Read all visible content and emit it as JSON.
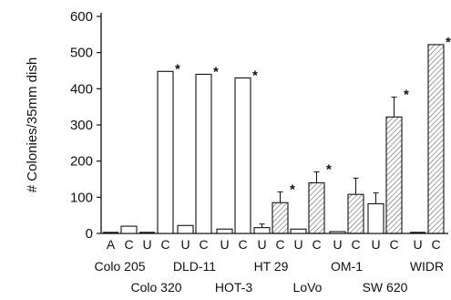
{
  "chart_data": {
    "type": "bar",
    "ylabel": "# Colonies/35mm dish",
    "ylim": [
      0,
      600
    ],
    "yticks": [
      0,
      100,
      200,
      300,
      400,
      500,
      600
    ],
    "grid": false,
    "legend": "none",
    "groups": [
      {
        "name": "Colo 205",
        "bars": [
          {
            "label": "A",
            "value": 0,
            "error": 0,
            "star": false,
            "hatched": false,
            "tiny_label": ""
          },
          {
            "label": "C",
            "value": 20,
            "error": 0,
            "star": false,
            "hatched": false
          }
        ]
      },
      {
        "name": "Colo 320",
        "bars": [
          {
            "label": "U",
            "value": 0,
            "error": 0,
            "star": false,
            "hatched": false
          },
          {
            "label": "C",
            "value": 448,
            "error": 0,
            "star": true,
            "hatched": false
          }
        ]
      },
      {
        "name": "DLD-11",
        "bars": [
          {
            "label": "U",
            "value": 22,
            "error": 0,
            "star": false,
            "hatched": false
          },
          {
            "label": "C",
            "value": 440,
            "error": 0,
            "star": true,
            "hatched": false
          }
        ]
      },
      {
        "name": "HOT-3",
        "bars": [
          {
            "label": "U",
            "value": 12,
            "error": 0,
            "star": false,
            "hatched": false
          },
          {
            "label": "C",
            "value": 430,
            "error": 0,
            "star": true,
            "hatched": false
          }
        ]
      },
      {
        "name": "HT 29",
        "bars": [
          {
            "label": "U",
            "value": 16,
            "error": 10,
            "star": false,
            "hatched": false
          },
          {
            "label": "C",
            "value": 85,
            "error": 30,
            "star": true,
            "hatched": true
          }
        ]
      },
      {
        "name": "LoVo",
        "bars": [
          {
            "label": "U",
            "value": 12,
            "error": 0,
            "star": false,
            "hatched": false
          },
          {
            "label": "C",
            "value": 140,
            "error": 30,
            "star": true,
            "hatched": true
          }
        ]
      },
      {
        "name": "OM-1",
        "bars": [
          {
            "label": "U",
            "value": 5,
            "error": 0,
            "star": false,
            "hatched": false
          },
          {
            "label": "C",
            "value": 108,
            "error": 45,
            "star": false,
            "hatched": true
          }
        ]
      },
      {
        "name": "SW 620",
        "bars": [
          {
            "label": "U",
            "value": 82,
            "error": 30,
            "star": false,
            "hatched": false
          },
          {
            "label": "C",
            "value": 322,
            "error": 55,
            "star": true,
            "hatched": true
          }
        ]
      },
      {
        "name": "WIDR",
        "bars": [
          {
            "label": "U",
            "value": 0,
            "error": 0,
            "star": false,
            "hatched": false
          },
          {
            "label": "C",
            "value": 522,
            "error": 0,
            "star": true,
            "hatched": true
          }
        ]
      }
    ],
    "colors": {
      "ink": "#111111",
      "bar_fill": "#ffffff",
      "hatch": "#333333"
    }
  }
}
